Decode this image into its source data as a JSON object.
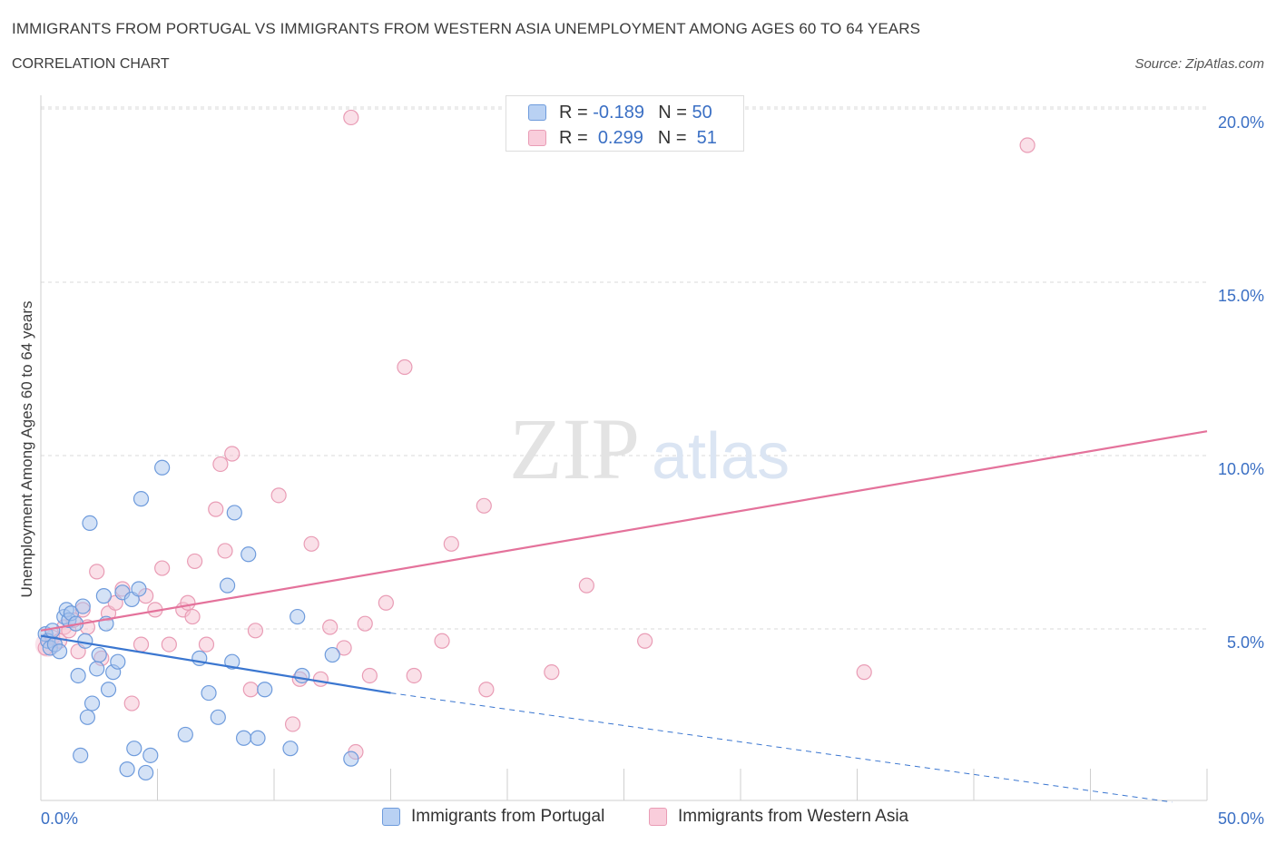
{
  "header": {
    "title": "IMMIGRANTS FROM PORTUGAL VS IMMIGRANTS FROM WESTERN ASIA UNEMPLOYMENT AMONG AGES 60 TO 64 YEARS",
    "subtitle": "CORRELATION CHART",
    "source": "Source: ZipAtlas.com"
  },
  "watermark": {
    "zip": "ZIP",
    "atlas": "atlas"
  },
  "colors": {
    "blue_fill": "#a9c6ee",
    "blue_stroke": "#6e9bdc",
    "blue_line": "#3a76d0",
    "pink_fill": "#f6c2d2",
    "pink_stroke": "#e99cb5",
    "pink_line": "#e4729b",
    "axis_text": "#3a6fc4",
    "grid": "#d8d8d8"
  },
  "legend": {
    "rows": [
      {
        "r_label": "R =",
        "r_value": "-0.189",
        "n_label": "N =",
        "n_value": "50"
      },
      {
        "r_label": "R =",
        "r_value": "0.299",
        "n_label": "N =",
        "n_value": "51"
      }
    ]
  },
  "bottom_legend": {
    "series1": "Immigrants from Portugal",
    "series2": "Immigrants from Western Asia"
  },
  "chart_data": {
    "type": "scatter",
    "title": "IMMIGRANTS FROM PORTUGAL VS IMMIGRANTS FROM WESTERN ASIA UNEMPLOYMENT AMONG AGES 60 TO 64 YEARS",
    "xlabel": "",
    "ylabel": "Unemployment Among Ages 60 to 64 years",
    "xlim": [
      0,
      50
    ],
    "ylim": [
      0,
      20
    ],
    "x_tick_labels": [
      "0.0%",
      "50.0%"
    ],
    "y_ticks": [
      5,
      10,
      15,
      20
    ],
    "y_tick_labels": [
      "5.0%",
      "10.0%",
      "15.0%",
      "20.0%"
    ],
    "series": [
      {
        "name": "Immigrants from Portugal",
        "color": "blue",
        "points": [
          [
            0.2,
            4.8
          ],
          [
            0.3,
            4.6
          ],
          [
            0.4,
            4.4
          ],
          [
            0.5,
            4.9
          ],
          [
            0.6,
            4.5
          ],
          [
            0.8,
            4.3
          ],
          [
            1.0,
            5.3
          ],
          [
            1.1,
            5.5
          ],
          [
            1.2,
            5.2
          ],
          [
            1.3,
            5.4
          ],
          [
            1.5,
            5.1
          ],
          [
            1.6,
            3.6
          ],
          [
            1.7,
            1.3
          ],
          [
            1.8,
            5.6
          ],
          [
            1.9,
            4.6
          ],
          [
            2.0,
            2.4
          ],
          [
            2.1,
            8.0
          ],
          [
            2.2,
            2.8
          ],
          [
            2.4,
            3.8
          ],
          [
            2.5,
            4.2
          ],
          [
            2.7,
            5.9
          ],
          [
            2.8,
            5.1
          ],
          [
            2.9,
            3.2
          ],
          [
            3.1,
            3.7
          ],
          [
            3.3,
            4.0
          ],
          [
            3.5,
            6.0
          ],
          [
            3.7,
            0.9
          ],
          [
            3.9,
            5.8
          ],
          [
            4.0,
            1.5
          ],
          [
            4.2,
            6.1
          ],
          [
            4.3,
            8.7
          ],
          [
            4.5,
            0.8
          ],
          [
            4.7,
            1.3
          ],
          [
            5.2,
            9.6
          ],
          [
            6.2,
            1.9
          ],
          [
            6.8,
            4.1
          ],
          [
            7.2,
            3.1
          ],
          [
            7.6,
            2.4
          ],
          [
            8.0,
            6.2
          ],
          [
            8.2,
            4.0
          ],
          [
            8.3,
            8.3
          ],
          [
            8.7,
            1.8
          ],
          [
            8.9,
            7.1
          ],
          [
            9.3,
            1.8
          ],
          [
            9.6,
            3.2
          ],
          [
            10.7,
            1.5
          ],
          [
            11.0,
            5.3
          ],
          [
            11.2,
            3.6
          ],
          [
            12.5,
            4.2
          ],
          [
            13.3,
            1.2
          ]
        ],
        "trend": {
          "x": [
            0,
            15
          ],
          "y": [
            4.75,
            3.1
          ]
        },
        "trend_extension": {
          "x": [
            15,
            48.5
          ],
          "y": [
            3.1,
            -0.05
          ]
        }
      },
      {
        "name": "Immigrants from Western Asia",
        "color": "pink",
        "points": [
          [
            0.2,
            4.4
          ],
          [
            0.5,
            4.7
          ],
          [
            0.8,
            4.6
          ],
          [
            1.0,
            5.0
          ],
          [
            1.2,
            4.9
          ],
          [
            1.4,
            5.2
          ],
          [
            1.6,
            4.3
          ],
          [
            1.8,
            5.5
          ],
          [
            2.0,
            5.0
          ],
          [
            2.4,
            6.6
          ],
          [
            2.6,
            4.1
          ],
          [
            2.9,
            5.4
          ],
          [
            3.2,
            5.7
          ],
          [
            3.5,
            6.1
          ],
          [
            3.9,
            2.8
          ],
          [
            4.3,
            4.5
          ],
          [
            4.5,
            5.9
          ],
          [
            4.9,
            5.5
          ],
          [
            5.2,
            6.7
          ],
          [
            5.5,
            4.5
          ],
          [
            6.1,
            5.5
          ],
          [
            6.3,
            5.7
          ],
          [
            6.5,
            5.3
          ],
          [
            6.6,
            6.9
          ],
          [
            7.1,
            4.5
          ],
          [
            7.5,
            8.4
          ],
          [
            7.7,
            9.7
          ],
          [
            7.9,
            7.2
          ],
          [
            8.2,
            10.0
          ],
          [
            9.0,
            3.2
          ],
          [
            9.2,
            4.9
          ],
          [
            10.2,
            8.8
          ],
          [
            10.8,
            2.2
          ],
          [
            11.1,
            3.5
          ],
          [
            11.6,
            7.4
          ],
          [
            12.0,
            3.5
          ],
          [
            12.4,
            5.0
          ],
          [
            13.0,
            4.4
          ],
          [
            13.3,
            19.7
          ],
          [
            13.5,
            1.4
          ],
          [
            13.9,
            5.1
          ],
          [
            14.1,
            3.6
          ],
          [
            14.8,
            5.7
          ],
          [
            15.6,
            12.5
          ],
          [
            16.0,
            3.6
          ],
          [
            17.2,
            4.6
          ],
          [
            17.6,
            7.4
          ],
          [
            19.0,
            8.5
          ],
          [
            19.1,
            3.2
          ],
          [
            21.9,
            3.7
          ],
          [
            23.4,
            6.2
          ]
        ],
        "extra_points": [
          [
            25.9,
            4.6
          ],
          [
            35.3,
            3.7
          ],
          [
            42.3,
            18.9
          ]
        ],
        "trend": {
          "x": [
            0,
            50
          ],
          "y": [
            4.9,
            10.65
          ]
        }
      }
    ]
  }
}
